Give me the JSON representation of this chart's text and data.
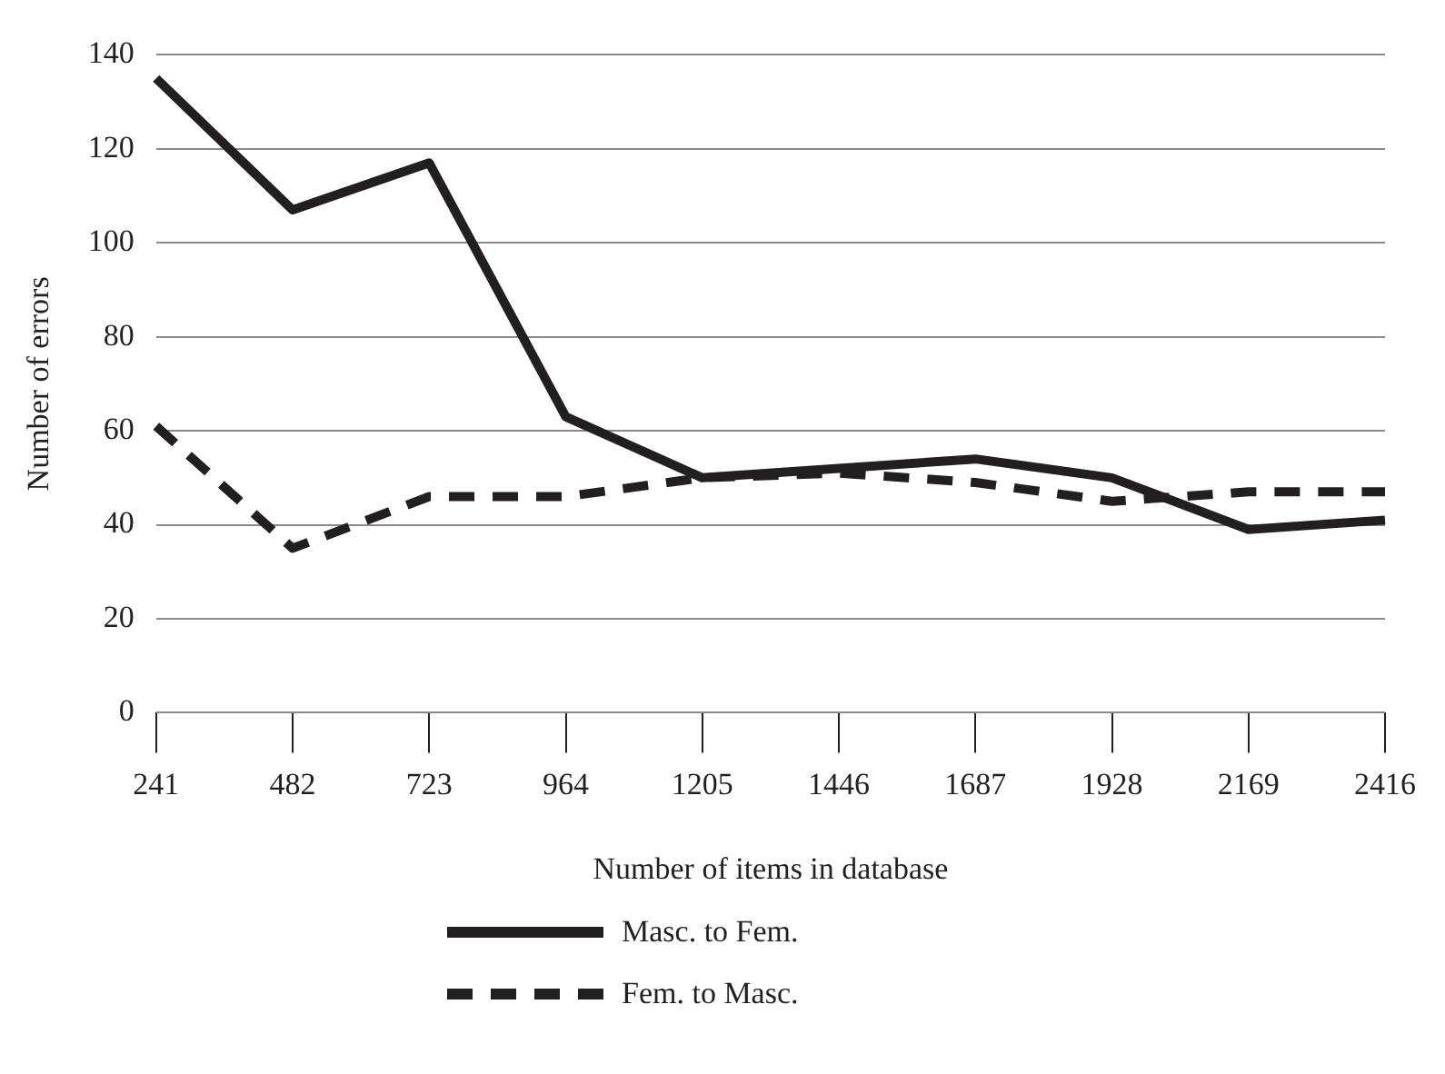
{
  "chart_data": {
    "type": "line",
    "xlabel": "Number of items in database",
    "ylabel": "Number of errors",
    "categories": [
      "241",
      "482",
      "723",
      "964",
      "1205",
      "1446",
      "1687",
      "1928",
      "2169",
      "2416"
    ],
    "series": [
      {
        "name": "Masc. to Fem.",
        "color": "#231f20",
        "line_style": "solid",
        "values": [
          135,
          107,
          117,
          63,
          50,
          52,
          54,
          50,
          39,
          41
        ]
      },
      {
        "name": "Fem. to Masc.",
        "color": "#231f20",
        "line_style": "dashed",
        "values": [
          61,
          35,
          46,
          46,
          50,
          51,
          49,
          45,
          47,
          47
        ]
      }
    ],
    "ylim": [
      0,
      140
    ],
    "yticks": [
      0,
      20,
      40,
      60,
      80,
      100,
      120,
      140
    ],
    "grid": "y",
    "legend": "bottom",
    "marker": "none"
  }
}
